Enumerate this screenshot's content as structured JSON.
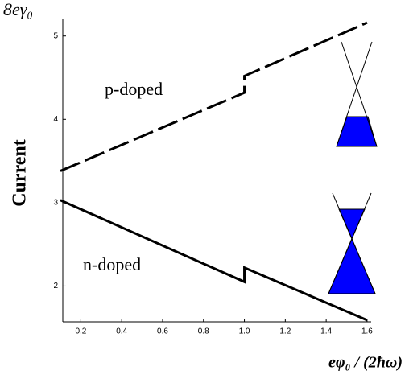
{
  "chart_data": {
    "type": "line",
    "y_unit": "8eγ₀",
    "y_label": "Current",
    "x_label": "eφ₀ / (2ħω)",
    "annotations": [
      "p-doped",
      "n-doped"
    ],
    "xlim": [
      0.1,
      1.62
    ],
    "ylim": [
      1.57,
      5.2
    ],
    "xticks": [
      0.2,
      0.4,
      0.6,
      0.8,
      {
        "value": 1.0,
        "label": "1.0"
      },
      1.2,
      1.4,
      1.6
    ],
    "yticks": [
      2,
      3,
      4,
      5
    ],
    "series": [
      {
        "name": "p-doped",
        "color": "#000000",
        "dash": true,
        "x": [
          0.1,
          1.0,
          1.0,
          1.6
        ],
        "values": [
          3.38,
          4.32,
          4.52,
          5.16
        ]
      },
      {
        "name": "n-doped",
        "color": "#000000",
        "dash": false,
        "x": [
          0.1,
          1.0,
          1.0,
          1.6
        ],
        "values": [
          3.03,
          2.05,
          2.22,
          1.59
        ]
      }
    ]
  }
}
